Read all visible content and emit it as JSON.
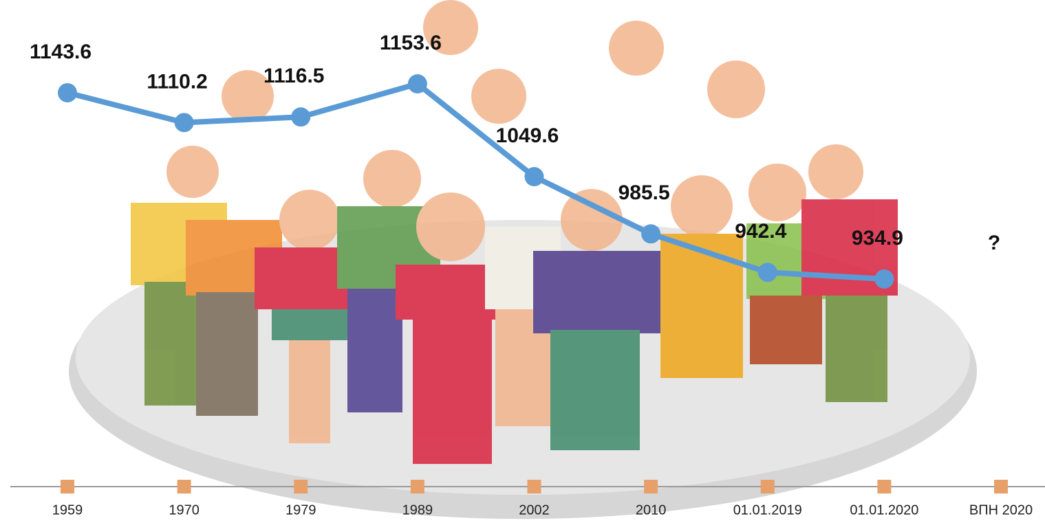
{
  "chart_data": {
    "type": "line",
    "categories": [
      "1959",
      "1970",
      "1979",
      "1989",
      "2002",
      "2010",
      "01.01.2019",
      "01.01.2020",
      "ВПН 2020"
    ],
    "series": [
      {
        "color": "#5b9bd5",
        "values": [
          1143.6,
          1110.2,
          1116.5,
          1153.6,
          1049.6,
          985.5,
          942.4,
          934.9,
          null
        ],
        "value_labels": [
          "1143.6",
          "1110.2",
          "1116.5",
          "1153.6",
          "1049.6",
          "985.5",
          "942.4",
          "934.9",
          "?"
        ]
      }
    ],
    "marker_color": "#e8a06a"
  }
}
